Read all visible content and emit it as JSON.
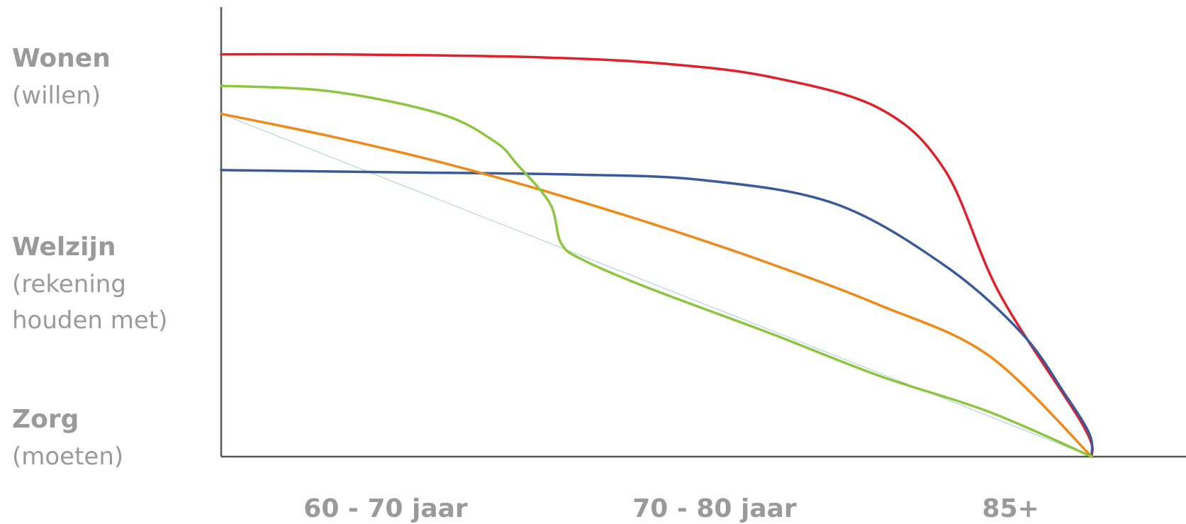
{
  "chart_data": {
    "type": "line",
    "title": "",
    "xlabel": "",
    "ylabel": "",
    "y_levels": [
      {
        "id": "wonen",
        "title": "Wonen",
        "subtitle_lines": [
          "(willen)"
        ],
        "value": 3
      },
      {
        "id": "welzijn",
        "title": "Welzijn",
        "subtitle_lines": [
          "(rekening",
          "houden met)"
        ],
        "value": 2
      },
      {
        "id": "zorg",
        "title": "Zorg",
        "subtitle_lines": [
          "(moeten)"
        ],
        "value": 1
      }
    ],
    "x_ticks": [
      {
        "label": "60 - 70 jaar",
        "value": 0.75
      },
      {
        "label": "70 - 80 jaar",
        "value": 2.25
      },
      {
        "label": "85+",
        "value": 3.6
      }
    ],
    "xlim": [
      0,
      4.4
    ],
    "ylim": [
      0,
      4.0
    ],
    "grid": false,
    "legend": "none",
    "series": [
      {
        "color": "#e0202a",
        "width": 3.5,
        "points": [
          [
            0,
            3.58
          ],
          [
            0.5,
            3.58
          ],
          [
            1.0,
            3.57
          ],
          [
            1.5,
            3.55
          ],
          [
            2.0,
            3.5
          ],
          [
            2.5,
            3.38
          ],
          [
            3.0,
            3.1
          ],
          [
            3.3,
            2.55
          ],
          [
            3.55,
            1.45
          ],
          [
            3.93,
            0.28
          ],
          [
            3.97,
            0
          ]
        ]
      },
      {
        "color": "#3a5a99",
        "width": 3.5,
        "points": [
          [
            0,
            2.55
          ],
          [
            0.8,
            2.53
          ],
          [
            1.6,
            2.51
          ],
          [
            2.2,
            2.46
          ],
          [
            2.8,
            2.25
          ],
          [
            3.3,
            1.7
          ],
          [
            3.65,
            1.1
          ],
          [
            3.85,
            0.55
          ],
          [
            3.96,
            0.2
          ],
          [
            3.97,
            0
          ]
        ]
      },
      {
        "color": "#ef8a1a",
        "width": 3.5,
        "points": [
          [
            0,
            3.05
          ],
          [
            0.5,
            2.85
          ],
          [
            1.0,
            2.62
          ],
          [
            1.5,
            2.35
          ],
          [
            2.0,
            2.05
          ],
          [
            2.5,
            1.72
          ],
          [
            3.0,
            1.35
          ],
          [
            3.5,
            0.9
          ],
          [
            3.97,
            0
          ]
        ]
      },
      {
        "color": "#8cc63f",
        "width": 3.5,
        "points": [
          [
            0,
            3.3
          ],
          [
            0.5,
            3.25
          ],
          [
            1.0,
            3.05
          ],
          [
            1.25,
            2.8
          ],
          [
            1.35,
            2.6
          ],
          [
            1.5,
            2.25
          ],
          [
            1.55,
            1.9
          ],
          [
            1.65,
            1.75
          ],
          [
            1.95,
            1.5
          ],
          [
            2.5,
            1.1
          ],
          [
            3.0,
            0.72
          ],
          [
            3.5,
            0.4
          ],
          [
            3.97,
            0
          ]
        ]
      },
      {
        "color": "#a8c8dc",
        "width": 1,
        "points": [
          [
            0,
            3.05
          ],
          [
            3.97,
            0
          ]
        ]
      }
    ]
  }
}
